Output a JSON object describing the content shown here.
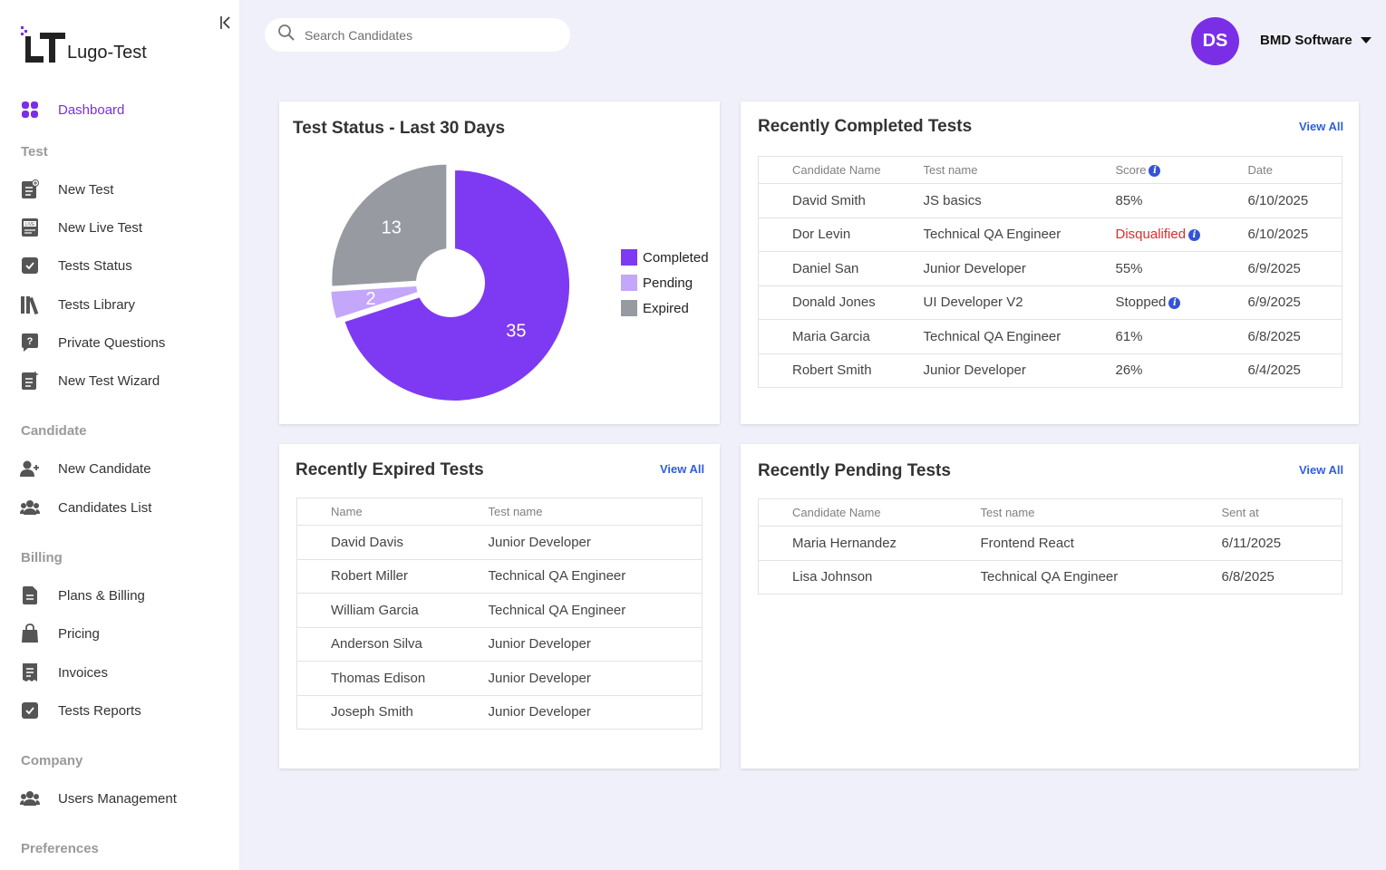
{
  "app": {
    "name": "Lugo-Test"
  },
  "sidebar": {
    "dashboard": "Dashboard",
    "sections": {
      "test": "Test",
      "candidate": "Candidate",
      "billing": "Billing",
      "company": "Company",
      "preferences": "Preferences"
    },
    "items": {
      "new_test": "New Test",
      "new_live_test": "New Live Test",
      "tests_status": "Tests Status",
      "tests_library": "Tests Library",
      "private_questions": "Private Questions",
      "new_test_wizard": "New Test Wizard",
      "new_candidate": "New Candidate",
      "candidates_list": "Candidates List",
      "plans_billing": "Plans & Billing",
      "pricing": "Pricing",
      "invoices": "Invoices",
      "tests_reports": "Tests Reports",
      "users_management": "Users Management"
    }
  },
  "header": {
    "search_placeholder": "Search Candidates",
    "avatar_initials": "DS",
    "account_name": "BMD Software"
  },
  "status_card": {
    "title": "Test Status - Last 30 Days"
  },
  "chart_data": {
    "type": "pie",
    "title": "Test Status - Last 30 Days",
    "categories": [
      "Completed",
      "Pending",
      "Expired"
    ],
    "values": [
      35,
      2,
      13
    ],
    "colors": [
      "#7e3af2",
      "#c4a6fb",
      "#979aa1"
    ],
    "legend_position": "right",
    "donut": true
  },
  "completed": {
    "title": "Recently Completed Tests",
    "view_all": "View All",
    "headers": [
      "Candidate Name",
      "Test name",
      "Score",
      "Date"
    ],
    "rows": [
      {
        "name": "David Smith",
        "test": "JS basics",
        "score": "85%",
        "date": "6/10/2025"
      },
      {
        "name": "Dor Levin",
        "test": "Technical QA Engineer",
        "score": "Disqualified",
        "date": "6/10/2025"
      },
      {
        "name": "Daniel San",
        "test": "Junior Developer",
        "score": "55%",
        "date": "6/9/2025"
      },
      {
        "name": "Donald Jones",
        "test": "UI Developer V2",
        "score": "Stopped",
        "date": "6/9/2025"
      },
      {
        "name": "Maria Garcia",
        "test": "Technical QA Engineer",
        "score": "61%",
        "date": "6/8/2025"
      },
      {
        "name": "Robert Smith",
        "test": "Junior Developer",
        "score": "26%",
        "date": "6/4/2025"
      }
    ]
  },
  "expired": {
    "title": "Recently Expired Tests",
    "view_all": "View All",
    "headers": [
      "Name",
      "Test name"
    ],
    "rows": [
      {
        "name": "David Davis",
        "test": "Junior Developer"
      },
      {
        "name": "Robert Miller",
        "test": "Technical QA Engineer"
      },
      {
        "name": "William Garcia",
        "test": "Technical QA Engineer"
      },
      {
        "name": "Anderson Silva",
        "test": "Junior Developer"
      },
      {
        "name": "Thomas Edison",
        "test": "Junior Developer"
      },
      {
        "name": "Joseph Smith",
        "test": "Junior Developer"
      }
    ]
  },
  "pending": {
    "title": "Recently Pending Tests",
    "view_all": "View All",
    "headers": [
      "Candidate Name",
      "Test name",
      "Sent at"
    ],
    "rows": [
      {
        "name": "Maria Hernandez",
        "test": "Frontend React",
        "sent": "6/11/2025"
      },
      {
        "name": "Lisa Johnson",
        "test": "Technical QA Engineer",
        "sent": "6/8/2025"
      }
    ]
  }
}
